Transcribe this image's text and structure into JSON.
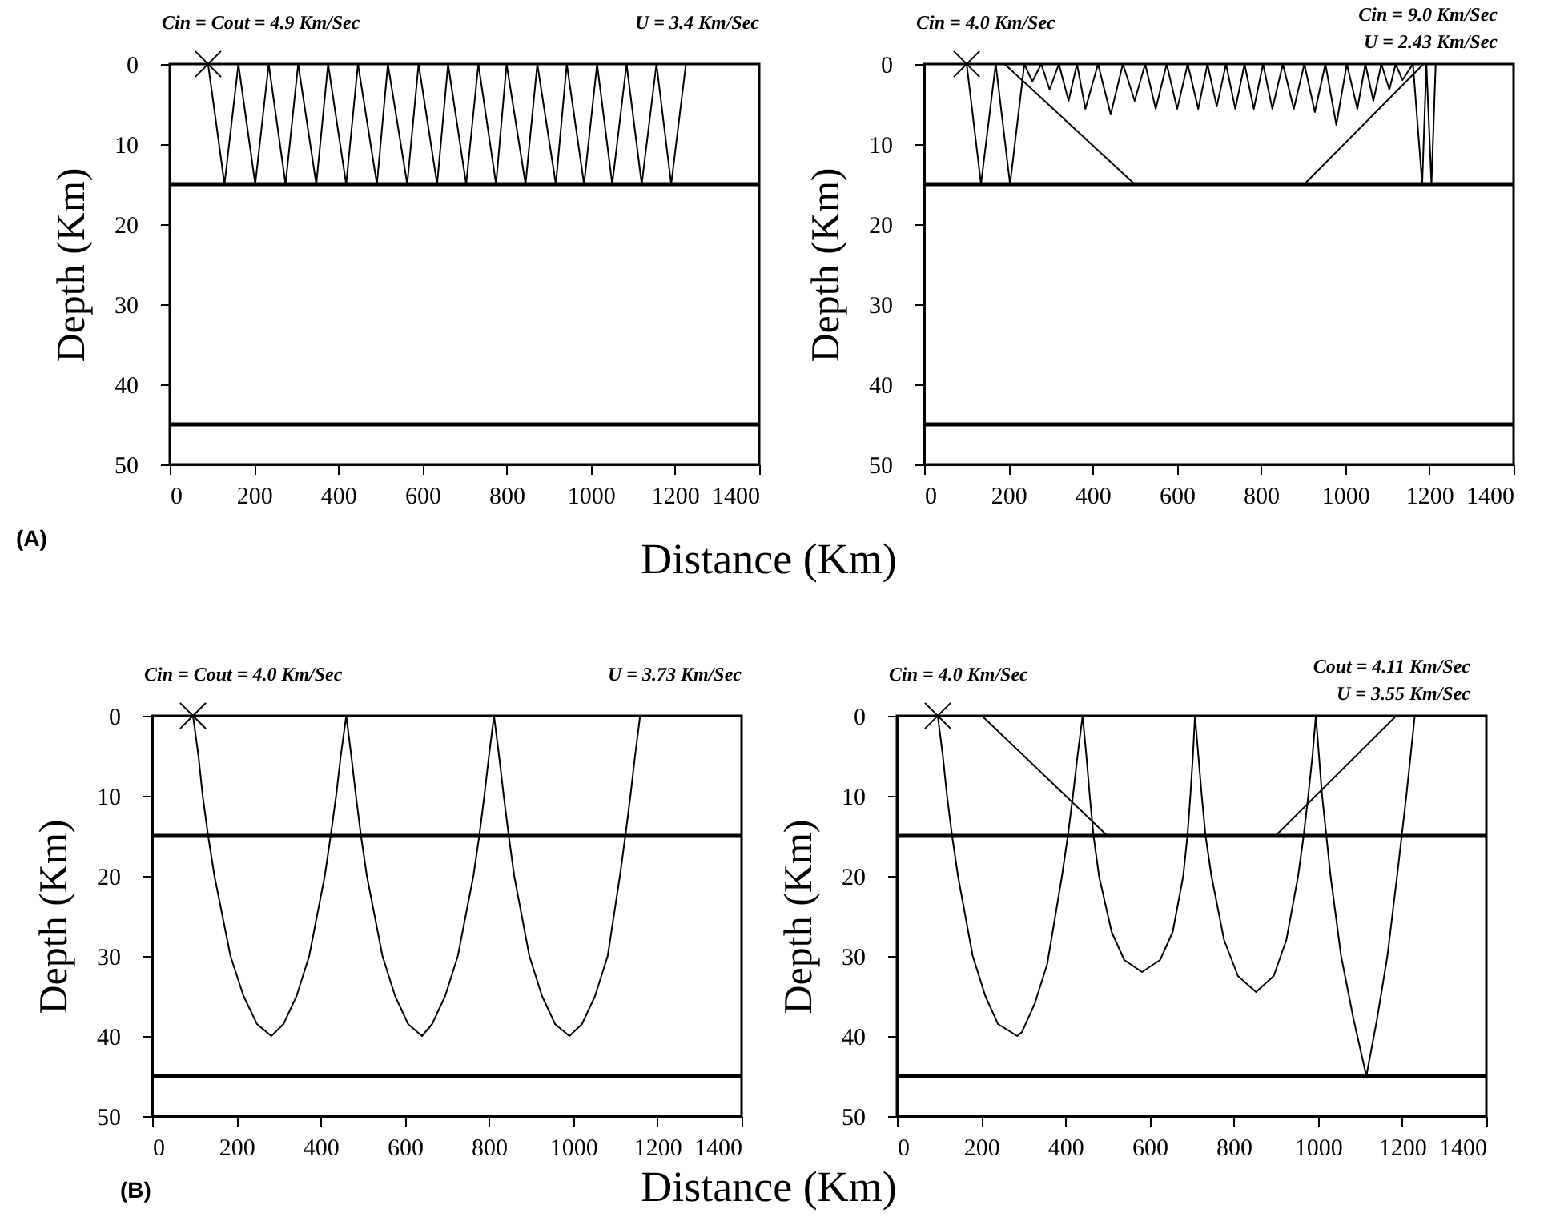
{
  "chart_data": [
    {
      "type": "line",
      "xlabel": "Distance (Km)",
      "ylabel": "Depth (Km)",
      "annotations": [
        "Cin = Cout = 4.9 Km/Sec",
        "U = 3.4 Km/Sec",
        "(A)"
      ],
      "xlim": [
        0,
        1400
      ],
      "ylim": [
        50,
        0
      ],
      "xticks": [
        0,
        200,
        400,
        600,
        800,
        1000,
        1200,
        1400
      ],
      "yticks": [
        0,
        10,
        20,
        30,
        40,
        50
      ],
      "grid": false,
      "line_style": "solid",
      "ref_lines": [
        {
          "axis": "y",
          "value": 15,
          "color": "#000000"
        },
        {
          "axis": "y",
          "value": 45,
          "color": "#000000"
        }
      ],
      "series": [
        {
          "type": "line",
          "color": "#000000",
          "x": [
            91,
            130,
            163,
            203,
            235,
            275,
            305,
            348,
            376,
            419,
            447,
            492,
            518,
            564,
            591,
            635,
            661,
            704,
            733,
            775,
            800,
            845,
            873,
            917,
            943,
            984,
            1015,
            1051,
            1085,
            1121,
            1156,
            1191,
            1226
          ],
          "values": [
            0,
            15,
            0,
            15,
            0,
            15,
            0,
            15,
            0,
            15,
            0,
            15,
            0,
            15,
            0,
            15,
            0,
            15,
            0,
            15,
            0,
            15,
            0,
            15,
            0,
            15,
            0,
            15,
            0,
            15,
            0,
            15,
            0
          ]
        },
        {
          "type": "scatter",
          "marker": "cross",
          "color": "#000000",
          "x": [
            91
          ],
          "values": [
            0
          ]
        }
      ]
    },
    {
      "type": "line",
      "ylabel": "Depth (Km)",
      "annotations": [
        "Cin  = 4.0 Km/Sec",
        "Cin  = 9.0 Km/Sec",
        "U = 2.43 Km/Sec"
      ],
      "xlim": [
        0,
        1400
      ],
      "ylim": [
        50,
        0
      ],
      "xticks": [
        0,
        200,
        400,
        600,
        800,
        1000,
        1200,
        1400
      ],
      "yticks": [
        0,
        10,
        20,
        30,
        40,
        50
      ],
      "grid": false,
      "line_style": "solid",
      "ref_lines": [
        {
          "axis": "y",
          "value": 15,
          "color": "#000000"
        },
        {
          "axis": "y",
          "value": 45,
          "color": "#000000"
        }
      ],
      "series": [
        {
          "type": "line",
          "color": "#000000",
          "x": [
            101,
            135,
            170,
            204,
            238,
            257,
            278,
            298,
            320,
            343,
            363,
            383,
            413,
            443,
            472,
            500,
            525,
            550,
            576,
            601,
            626,
            651,
            673,
            695,
            717,
            739,
            761,
            783,
            805,
            827,
            852,
            878,
            903,
            928,
            953,
            979,
            1004,
            1029,
            1048,
            1067,
            1086,
            1105,
            1120,
            1136,
            1161,
            1183,
            1193,
            1205,
            1215
          ],
          "values": [
            0,
            15,
            0,
            15,
            0,
            2.2,
            0,
            3.2,
            0,
            4.6,
            0,
            5.6,
            0,
            6.3,
            0,
            4.6,
            0,
            5.6,
            0,
            5.6,
            0,
            5.6,
            0,
            5.3,
            0,
            5.6,
            0,
            5.6,
            0,
            5.6,
            0,
            5.6,
            0,
            6,
            0,
            7.6,
            0,
            5.6,
            0,
            4.6,
            0,
            3.2,
            0,
            2,
            0,
            15,
            0,
            15,
            0
          ]
        },
        {
          "type": "line",
          "color": "#000000",
          "x": [
            191,
            500
          ],
          "values": [
            0,
            15
          ]
        },
        {
          "type": "line",
          "color": "#000000",
          "x": [
            903,
            1186
          ],
          "values": [
            15,
            0
          ]
        },
        {
          "type": "scatter",
          "marker": "cross",
          "color": "#000000",
          "x": [
            101
          ],
          "values": [
            0
          ]
        }
      ]
    },
    {
      "type": "line",
      "xlabel": "Distance (Km)",
      "ylabel": "Depth (Km)",
      "annotations": [
        "Cin = Cout = 4.0 Km/Sec",
        "U = 3.73 Km/Sec",
        "(B)"
      ],
      "xlim": [
        0,
        1400
      ],
      "ylim": [
        50,
        0
      ],
      "xticks": [
        0,
        200,
        400,
        600,
        800,
        1000,
        1200,
        1400
      ],
      "yticks": [
        0,
        10,
        20,
        30,
        40,
        50
      ],
      "grid": false,
      "line_style": "solid",
      "ref_lines": [
        {
          "axis": "y",
          "value": 15,
          "color": "#000000"
        },
        {
          "axis": "y",
          "value": 45,
          "color": "#000000"
        }
      ],
      "series": [
        {
          "type": "line",
          "color": "#000000",
          "x": [
            97,
            110,
            120,
            133,
            148,
            186,
            217,
            249,
            283,
            312,
            343,
            373,
            410,
            424,
            437,
            448,
            461,
            473,
            484,
            496,
            510,
            547,
            577,
            608,
            641,
            665,
            696,
            726,
            763,
            777,
            789,
            800,
            812,
            824,
            835,
            847,
            860,
            896,
            926,
            957,
            991,
            1021,
            1052,
            1082,
            1111,
            1124,
            1136,
            1147,
            1159
          ],
          "values": [
            0,
            5,
            10,
            15,
            20,
            30,
            35,
            38.5,
            40,
            38.5,
            35,
            30,
            20,
            15,
            10,
            5,
            0,
            5,
            10,
            15,
            20,
            30,
            35,
            38.5,
            40,
            38.5,
            35,
            30,
            20,
            15,
            10,
            5,
            0,
            5,
            10,
            15,
            20,
            30,
            35,
            38.5,
            40,
            38.5,
            35,
            30,
            20,
            15,
            10,
            5,
            0
          ]
        },
        {
          "type": "scatter",
          "marker": "cross",
          "color": "#000000",
          "x": [
            97
          ],
          "values": [
            0
          ]
        }
      ]
    },
    {
      "type": "line",
      "ylabel": "Depth (Km)",
      "annotations": [
        "Cin  = 4.0 Km/Sec",
        "Cout  = 4.11 Km/Sec",
        "U = 3.55 Km/Sec"
      ],
      "xlim": [
        0,
        1400
      ],
      "ylim": [
        50,
        0
      ],
      "xticks": [
        0,
        200,
        400,
        600,
        800,
        1000,
        1200,
        1400
      ],
      "yticks": [
        0,
        10,
        20,
        30,
        40,
        50
      ],
      "grid": false,
      "line_style": "solid",
      "ref_lines": [
        {
          "axis": "y",
          "value": 15,
          "color": "#000000"
        },
        {
          "axis": "y",
          "value": 45,
          "color": "#000000"
        }
      ],
      "series": [
        {
          "type": "line",
          "color": "#000000",
          "x": [
            97,
            109,
            119,
            131,
            145,
            180,
            210,
            240,
            286,
            297,
            327,
            357,
            392,
            406,
            418,
            429,
            441,
            450,
            458,
            467,
            480,
            510,
            540,
            582,
            625,
            655,
            680,
            690,
            697,
            703,
            708,
            716,
            724,
            733,
            747,
            777,
            810,
            853,
            895,
            925,
            953,
            966,
            977,
            987,
            995,
            1010,
            1030,
            1055,
            1085,
            1115,
            1140,
            1165,
            1188,
            1210,
            1230
          ],
          "values": [
            0,
            5,
            10,
            15,
            20,
            30,
            35,
            38.5,
            40,
            39.5,
            36,
            31,
            20,
            15,
            10,
            5,
            0,
            5,
            10,
            15,
            20,
            27,
            30.5,
            32,
            30.5,
            27,
            20,
            15,
            10,
            5,
            0,
            5,
            10,
            15,
            20,
            28,
            32.5,
            34.5,
            32.5,
            28,
            20,
            15,
            10,
            5,
            0,
            10,
            20,
            30,
            38,
            45,
            38,
            30,
            20,
            10,
            0
          ]
        },
        {
          "type": "line",
          "color": "#000000",
          "x": [
            202,
            500
          ],
          "values": [
            0,
            15
          ]
        },
        {
          "type": "line",
          "color": "#000000",
          "x": [
            899,
            1186
          ],
          "values": [
            15,
            0
          ]
        },
        {
          "type": "scatter",
          "marker": "cross",
          "color": "#000000",
          "x": [
            97
          ],
          "values": [
            0
          ]
        }
      ]
    }
  ]
}
